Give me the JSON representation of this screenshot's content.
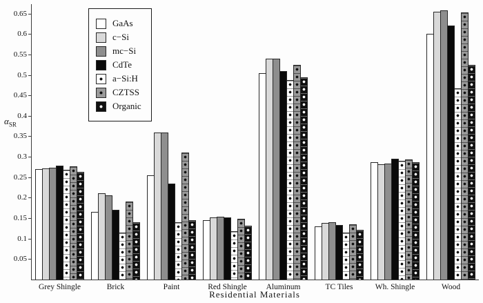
{
  "chart_data": {
    "type": "bar",
    "title": "",
    "xlabel": "Residential Materials",
    "ylabel": "α_SR",
    "ylabel_symbol": "α",
    "ylabel_subscript": "SR",
    "ylim": [
      0,
      0.673
    ],
    "yticks": [
      0.05,
      0.1,
      0.15,
      0.2,
      0.25,
      0.3,
      0.35,
      0.4,
      0.45,
      0.5,
      0.55,
      0.6,
      0.65
    ],
    "grid": false,
    "legend_position": "upper-left",
    "categories": [
      "Grey Shingle",
      "Brick",
      "Paint",
      "Red Shingle",
      "Aluminum",
      "TC Tiles",
      "Wh. Shingle",
      "Wood"
    ],
    "series": [
      {
        "name": "GaAs",
        "fill": "#ffffff",
        "dot": null,
        "line": null,
        "values": [
          0.27,
          0.165,
          0.255,
          0.145,
          0.505,
          0.13,
          0.287,
          0.6
        ]
      },
      {
        "name": "c−Si",
        "fill": "#d9d9d9",
        "dot": null,
        "line": null,
        "values": [
          0.271,
          0.21,
          0.36,
          0.152,
          0.54,
          0.138,
          0.282,
          0.655
        ]
      },
      {
        "name": "mc−Si",
        "fill": "#8e8e8e",
        "dot": null,
        "line": null,
        "values": [
          0.273,
          0.205,
          0.36,
          0.154,
          0.54,
          0.14,
          0.284,
          0.658
        ]
      },
      {
        "name": "CdTe",
        "fill": "#0a0a0a",
        "dot": null,
        "line": null,
        "values": [
          0.278,
          0.17,
          0.235,
          0.152,
          0.51,
          0.133,
          0.295,
          0.62
        ]
      },
      {
        "name": "a−Si:H",
        "fill": "#ffffff",
        "dot": "#111111",
        "line": "#999999",
        "values": [
          0.268,
          0.115,
          0.14,
          0.118,
          0.488,
          0.115,
          0.29,
          0.467
        ]
      },
      {
        "name": "CZTSS",
        "fill": "#9a9a9a",
        "dot": "#111111",
        "line": "#4f4f4f",
        "values": [
          0.276,
          0.19,
          0.31,
          0.148,
          0.525,
          0.135,
          0.293,
          0.652
        ]
      },
      {
        "name": "Organic",
        "fill": "#101010",
        "dot": "#ffffff",
        "line": "#6e6e6e",
        "values": [
          0.263,
          0.14,
          0.145,
          0.131,
          0.495,
          0.122,
          0.287,
          0.524
        ]
      }
    ]
  },
  "style_colors": {
    "axis": "#3a3a3a",
    "bar_border": "#262626",
    "background": "#fdfdfd"
  }
}
